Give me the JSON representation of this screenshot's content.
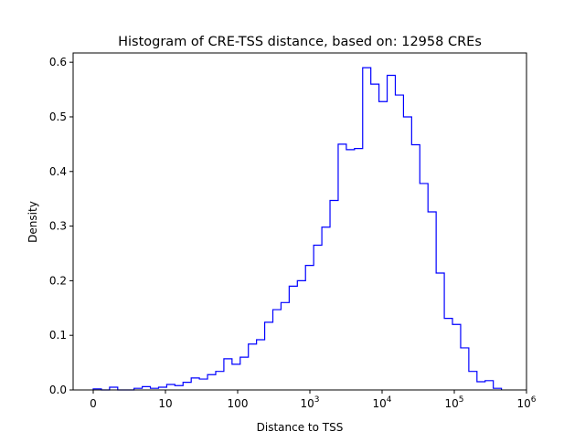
{
  "chart_data": {
    "type": "histogram-step",
    "title": "Histogram of CRE-TSS distance, based on: 12958 CREs",
    "xlabel": "Distance to TSS",
    "ylabel": "Density",
    "x_scale": "log (0 shown one decade below 10)",
    "x_ticks": [
      {
        "value": 0,
        "label": "0",
        "sup": ""
      },
      {
        "value": 10,
        "label": "10",
        "sup": ""
      },
      {
        "value": 100,
        "label": "100",
        "sup": ""
      },
      {
        "value": 1000,
        "label": "10",
        "sup": "3"
      },
      {
        "value": 10000,
        "label": "10",
        "sup": "4"
      },
      {
        "value": 100000,
        "label": "10",
        "sup": "5"
      },
      {
        "value": 1000000,
        "label": "10",
        "sup": "6"
      }
    ],
    "y_ticks": [
      "0.0",
      "0.1",
      "0.2",
      "0.3",
      "0.4",
      "0.5",
      "0.6"
    ],
    "ylim": [
      0,
      0.617
    ],
    "bins": 50,
    "bin_range": [
      0,
      450000
    ],
    "color": "#0000ff",
    "values": [
      0.002,
      0.0,
      0.005,
      0.0,
      0.0,
      0.003,
      0.006,
      0.003,
      0.005,
      0.01,
      0.008,
      0.014,
      0.022,
      0.02,
      0.028,
      0.034,
      0.057,
      0.047,
      0.06,
      0.084,
      0.092,
      0.124,
      0.147,
      0.16,
      0.19,
      0.2,
      0.228,
      0.265,
      0.298,
      0.347,
      0.45,
      0.44,
      0.442,
      0.59,
      0.56,
      0.528,
      0.576,
      0.54,
      0.5,
      0.449,
      0.378,
      0.326,
      0.214,
      0.131,
      0.12,
      0.077,
      0.034,
      0.015,
      0.017,
      0.003
    ]
  }
}
